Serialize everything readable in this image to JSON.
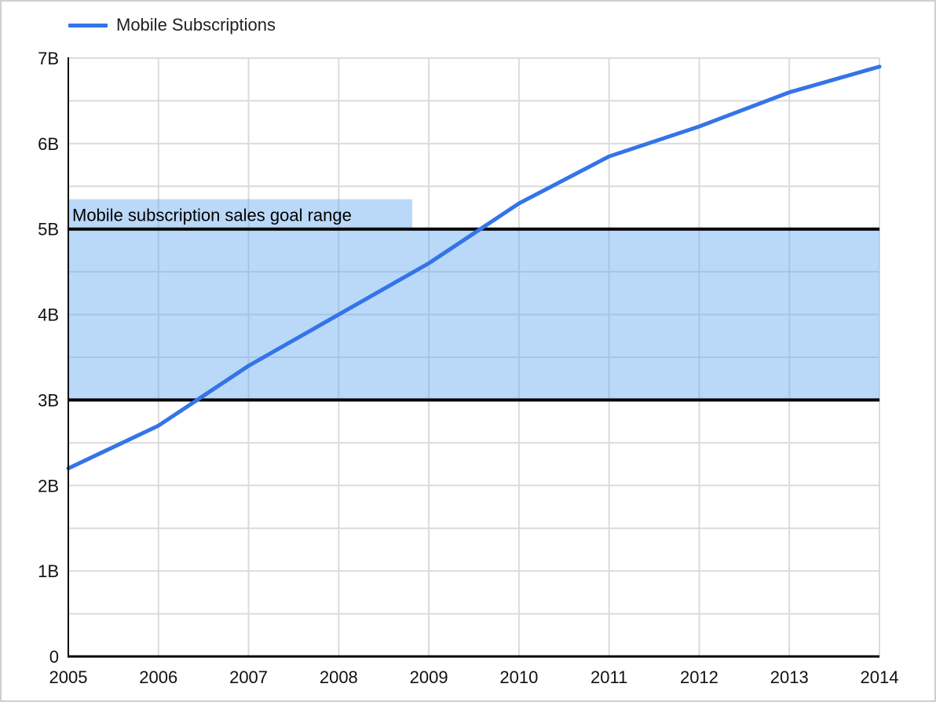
{
  "window": {
    "background": "#ffffff",
    "border_color": "#cfcfcf"
  },
  "legend": {
    "position": "top-left",
    "items": [
      {
        "label": "Mobile Subscriptions",
        "color": "#3474E8"
      }
    ]
  },
  "chart_data": {
    "type": "line",
    "title": "",
    "xlabel": "",
    "ylabel": "",
    "categories": [
      "2005",
      "2006",
      "2007",
      "2008",
      "2009",
      "2010",
      "2011",
      "2012",
      "2013",
      "2014"
    ],
    "series": [
      {
        "name": "Mobile Subscriptions",
        "color": "#3474E8",
        "values": [
          2.2,
          2.7,
          3.4,
          4.0,
          4.6,
          5.3,
          5.85,
          6.2,
          6.6,
          6.9
        ]
      }
    ],
    "ylim": [
      0,
      7
    ],
    "y_major_step": 1,
    "y_minor_step": 0.5,
    "y_tick_labels": [
      "0",
      "1B",
      "2B",
      "3B",
      "4B",
      "5B",
      "6B",
      "7B"
    ],
    "grid": true,
    "gridline_color": "#dbdbdb",
    "axis_color": "#000000",
    "tick_label_color": "#111111",
    "annotation_band": {
      "label": "Mobile subscription sales goal range",
      "from": 3,
      "to": 5,
      "fill": "rgba(102,168,240,0.45)",
      "border_color": "#000000",
      "label_color": "#000000"
    },
    "legend_position": "top-left"
  }
}
